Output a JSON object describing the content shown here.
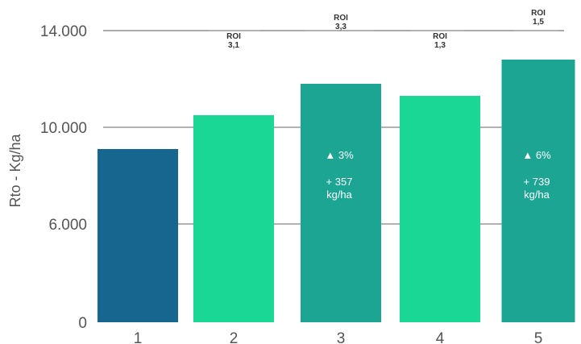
{
  "chart_data": {
    "type": "bar",
    "categories": [
      "1",
      "2",
      "3",
      "4",
      "5"
    ],
    "values": [
      9100,
      10500,
      11800,
      11300,
      12800
    ],
    "bar_colors": [
      "#17668f",
      "#1bd795",
      "#1ba592",
      "#1bd795",
      "#1ba592"
    ],
    "ylabel": "Rto - Kg/ha",
    "yticks": [
      {
        "value": 0,
        "label": "0"
      },
      {
        "value": 6000,
        "label": "6.000"
      },
      {
        "value": 10000,
        "label": "10.000"
      },
      {
        "value": 14000,
        "label": "14.000"
      }
    ],
    "roi_labels": [
      {
        "category": "2",
        "label": "ROI",
        "value": "3,1"
      },
      {
        "category": "3",
        "label": "ROI",
        "value": "3,3"
      },
      {
        "category": "4",
        "label": "ROI",
        "value": "1,3"
      },
      {
        "category": "5",
        "label": "ROI",
        "value": "1,5"
      }
    ],
    "bar_annotations": [
      {
        "category": "3",
        "pct": "▲ 3%",
        "delta": "+ 357",
        "unit": "kg/ha"
      },
      {
        "category": "5",
        "pct": "▲ 6%",
        "delta": "+ 739",
        "unit": "kg/ha"
      }
    ],
    "grid": true,
    "legend": "none"
  }
}
